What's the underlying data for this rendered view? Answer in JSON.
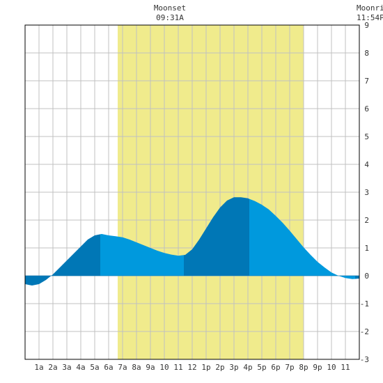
{
  "colors": {
    "daylight": "#f0eb8c",
    "tide_light": "#0099dd",
    "tide_dark": "#0077b6",
    "grid": "#c0c0c0",
    "text": "#333333",
    "background": "#ffffff"
  },
  "annotations": [
    {
      "title": "Moonset",
      "time": "09:31A",
      "hour": 9.52
    },
    {
      "title": "Moonri",
      "time": "11:54P",
      "hour": 23.9
    }
  ],
  "chart_data": {
    "type": "area",
    "title": "",
    "xlabel": "",
    "ylabel": "",
    "xlim": [
      0,
      24
    ],
    "ylim": [
      -3,
      9
    ],
    "grid": true,
    "x_tick_labels": [
      {
        "hour": 1,
        "label": "1a"
      },
      {
        "hour": 2,
        "label": "2a"
      },
      {
        "hour": 3,
        "label": "3a"
      },
      {
        "hour": 4,
        "label": "4a"
      },
      {
        "hour": 5,
        "label": "5a"
      },
      {
        "hour": 6,
        "label": "6a"
      },
      {
        "hour": 7,
        "label": "7a"
      },
      {
        "hour": 8,
        "label": "8a"
      },
      {
        "hour": 9,
        "label": "9a"
      },
      {
        "hour": 10,
        "label": "10"
      },
      {
        "hour": 11,
        "label": "11"
      },
      {
        "hour": 12,
        "label": "12"
      },
      {
        "hour": 13,
        "label": "1p"
      },
      {
        "hour": 14,
        "label": "2p"
      },
      {
        "hour": 15,
        "label": "3p"
      },
      {
        "hour": 16,
        "label": "4p"
      },
      {
        "hour": 17,
        "label": "5p"
      },
      {
        "hour": 18,
        "label": "6p"
      },
      {
        "hour": 19,
        "label": "7p"
      },
      {
        "hour": 20,
        "label": "8p"
      },
      {
        "hour": 21,
        "label": "9p"
      },
      {
        "hour": 22,
        "label": "10"
      },
      {
        "hour": 23,
        "label": "11"
      }
    ],
    "y_tick_labels": [
      "-3",
      "-2",
      "-1",
      "0",
      "1",
      "2",
      "3",
      "4",
      "5",
      "6",
      "7",
      "8",
      "9"
    ],
    "daylight": {
      "start_hour": 6.65,
      "end_hour": 20.0
    },
    "tide_series": {
      "x": [
        0,
        0.5,
        1,
        1.5,
        2,
        2.5,
        3,
        3.5,
        4,
        4.5,
        5,
        5.5,
        6,
        6.5,
        7,
        7.5,
        8,
        8.5,
        9,
        9.5,
        10,
        10.5,
        11,
        11.5,
        12,
        12.5,
        13,
        13.5,
        14,
        14.5,
        15,
        15.5,
        16,
        16.5,
        17,
        17.5,
        18,
        18.5,
        19,
        19.5,
        20,
        20.5,
        21,
        21.5,
        22,
        22.5,
        23,
        23.5,
        24
      ],
      "y": [
        -0.3,
        -0.35,
        -0.3,
        -0.15,
        0.05,
        0.3,
        0.55,
        0.8,
        1.05,
        1.3,
        1.45,
        1.5,
        1.45,
        1.42,
        1.38,
        1.3,
        1.2,
        1.1,
        1.0,
        0.9,
        0.82,
        0.76,
        0.72,
        0.75,
        0.95,
        1.3,
        1.7,
        2.1,
        2.45,
        2.7,
        2.82,
        2.82,
        2.78,
        2.68,
        2.55,
        2.38,
        2.15,
        1.9,
        1.62,
        1.32,
        1.02,
        0.75,
        0.5,
        0.3,
        0.12,
        0.0,
        -0.08,
        -0.12,
        -0.1
      ]
    },
    "extremes": [
      {
        "hour": 0.3,
        "type": "low"
      },
      {
        "hour": 5.4,
        "type": "high"
      },
      {
        "hour": 11.4,
        "type": "low"
      },
      {
        "hour": 16.1,
        "type": "high"
      },
      {
        "hour": 23.7,
        "type": "low"
      }
    ]
  }
}
